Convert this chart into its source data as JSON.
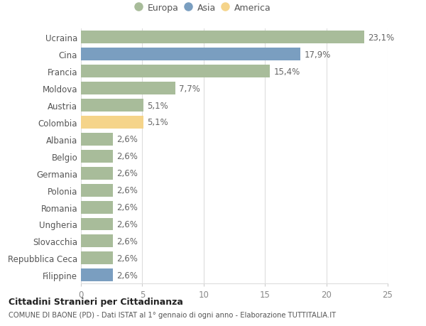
{
  "categories": [
    "Filippine",
    "Repubblica Ceca",
    "Slovacchia",
    "Ungheria",
    "Romania",
    "Polonia",
    "Germania",
    "Belgio",
    "Albania",
    "Colombia",
    "Austria",
    "Moldova",
    "Francia",
    "Cina",
    "Ucraina"
  ],
  "values": [
    2.6,
    2.6,
    2.6,
    2.6,
    2.6,
    2.6,
    2.6,
    2.6,
    2.6,
    5.1,
    5.1,
    7.7,
    15.4,
    17.9,
    23.1
  ],
  "labels": [
    "2,6%",
    "2,6%",
    "2,6%",
    "2,6%",
    "2,6%",
    "2,6%",
    "2,6%",
    "2,6%",
    "2,6%",
    "5,1%",
    "5,1%",
    "7,7%",
    "15,4%",
    "17,9%",
    "23,1%"
  ],
  "colors": [
    "#7a9ec0",
    "#a8bc9a",
    "#a8bc9a",
    "#a8bc9a",
    "#a8bc9a",
    "#a8bc9a",
    "#a8bc9a",
    "#a8bc9a",
    "#a8bc9a",
    "#f5d48a",
    "#a8bc9a",
    "#a8bc9a",
    "#a8bc9a",
    "#7a9ec0",
    "#a8bc9a"
  ],
  "legend": [
    {
      "label": "Europa",
      "color": "#a8bc9a"
    },
    {
      "label": "Asia",
      "color": "#7a9ec0"
    },
    {
      "label": "America",
      "color": "#f5d48a"
    }
  ],
  "xlim": [
    0,
    25
  ],
  "xticks": [
    0,
    5,
    10,
    15,
    20,
    25
  ],
  "title_bold": "Cittadini Stranieri per Cittadinanza",
  "subtitle": "COMUNE DI BAONE (PD) - Dati ISTAT al 1° gennaio di ogni anno - Elaborazione TUTTITALIA.IT",
  "bg_color": "#ffffff",
  "grid_color": "#dddddd",
  "bar_height": 0.75,
  "label_fontsize": 8.5,
  "tick_fontsize": 8.5,
  "label_color": "#666666",
  "ytick_color": "#555555"
}
